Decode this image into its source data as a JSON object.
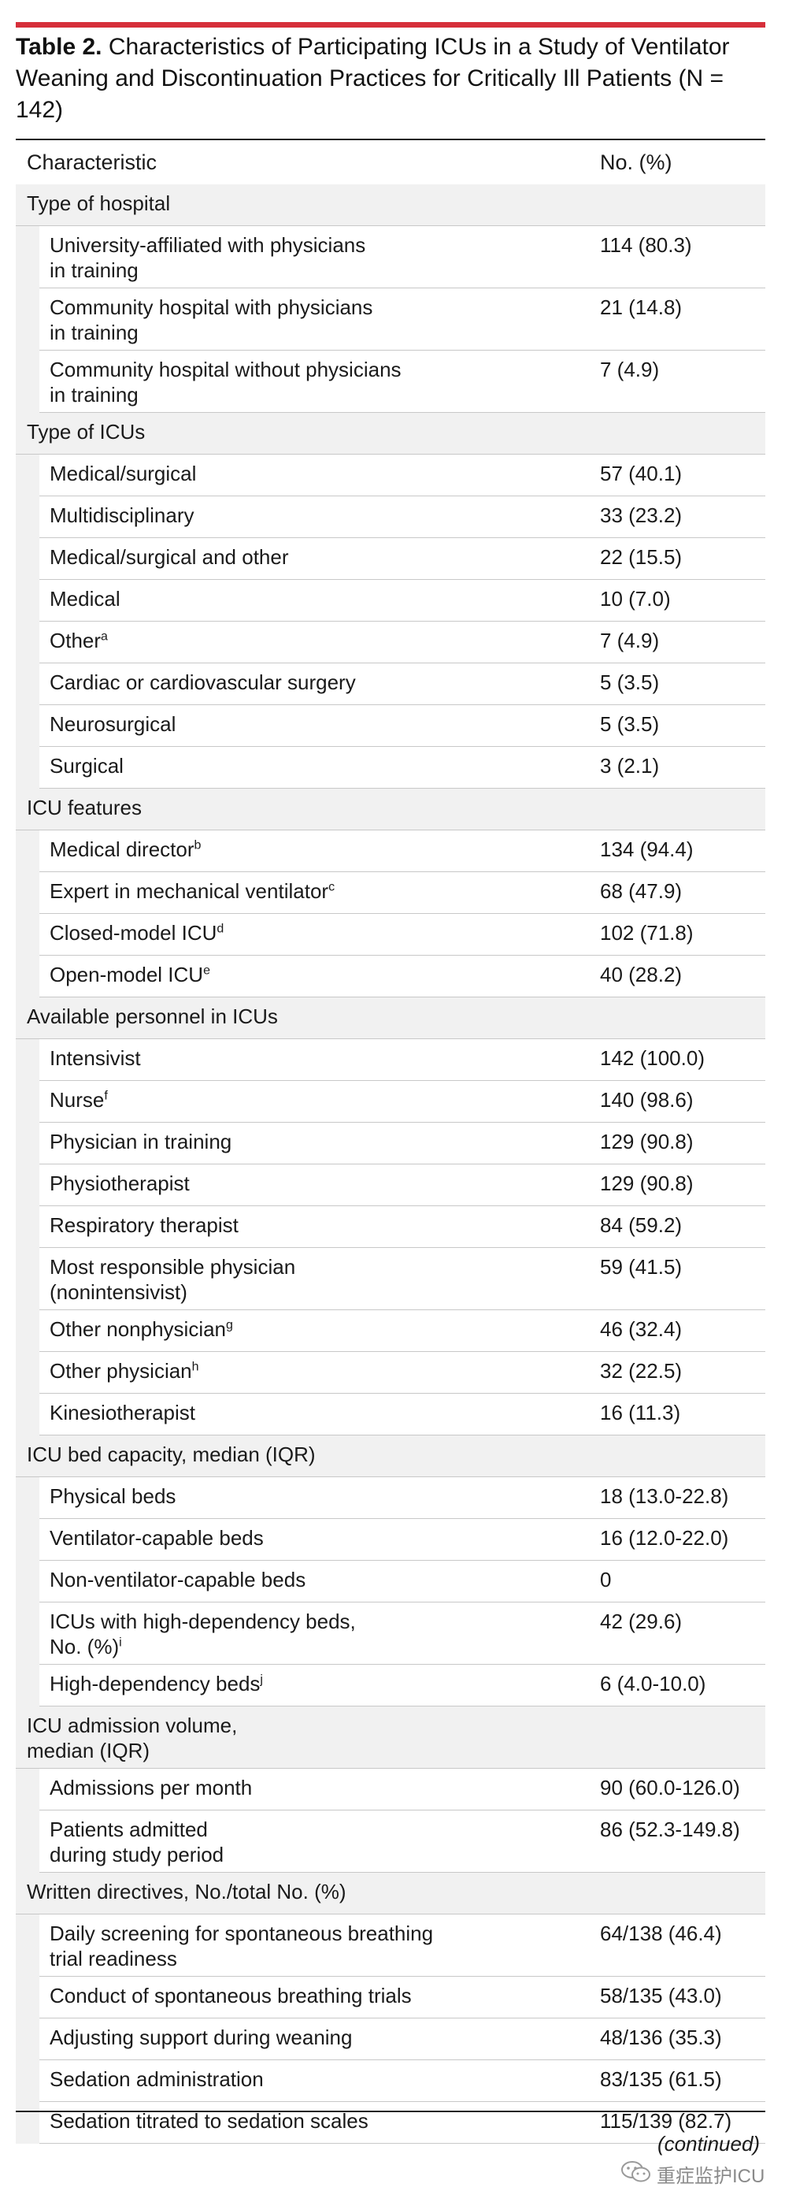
{
  "title": {
    "label": "Table 2.",
    "text": "Characteristics of Participating ICUs in a Study of Ventilator Weaning and Discontinuation Practices for Critically Ill Patients (N = 142)"
  },
  "header": {
    "col1": "Characteristic",
    "col2": "No. (%)"
  },
  "rows": [
    {
      "kind": "section",
      "label": "Type of hospital",
      "value": "",
      "sup": ""
    },
    {
      "kind": "sub",
      "label": "University-affiliated with physicians\nin training",
      "value": "114 (80.3)",
      "sup": ""
    },
    {
      "kind": "sub",
      "label": "Community hospital with physicians\nin training",
      "value": "21 (14.8)",
      "sup": ""
    },
    {
      "kind": "sub",
      "label": "Community hospital without physicians\nin training",
      "value": "7 (4.9)",
      "sup": ""
    },
    {
      "kind": "section",
      "label": "Type of ICUs",
      "value": "",
      "sup": ""
    },
    {
      "kind": "sub",
      "label": "Medical/surgical",
      "value": "57 (40.1)",
      "sup": ""
    },
    {
      "kind": "sub",
      "label": "Multidisciplinary",
      "value": "33 (23.2)",
      "sup": ""
    },
    {
      "kind": "sub",
      "label": "Medical/surgical and other",
      "value": "22 (15.5)",
      "sup": ""
    },
    {
      "kind": "sub",
      "label": "Medical",
      "value": "10 (7.0)",
      "sup": ""
    },
    {
      "kind": "sub",
      "label": "Other",
      "value": "7 (4.9)",
      "sup": "a"
    },
    {
      "kind": "sub",
      "label": "Cardiac or cardiovascular surgery",
      "value": "5 (3.5)",
      "sup": ""
    },
    {
      "kind": "sub",
      "label": "Neurosurgical",
      "value": "5 (3.5)",
      "sup": ""
    },
    {
      "kind": "sub",
      "label": "Surgical",
      "value": "3 (2.1)",
      "sup": ""
    },
    {
      "kind": "section",
      "label": "ICU features",
      "value": "",
      "sup": ""
    },
    {
      "kind": "sub",
      "label": "Medical director",
      "value": "134 (94.4)",
      "sup": "b"
    },
    {
      "kind": "sub",
      "label": "Expert in mechanical ventilator",
      "value": "68 (47.9)",
      "sup": "c"
    },
    {
      "kind": "sub",
      "label": "Closed-model ICU",
      "value": "102 (71.8)",
      "sup": "d"
    },
    {
      "kind": "sub",
      "label": "Open-model ICU",
      "value": "40 (28.2)",
      "sup": "e"
    },
    {
      "kind": "section",
      "label": "Available personnel in ICUs",
      "value": "",
      "sup": ""
    },
    {
      "kind": "sub",
      "label": "Intensivist",
      "value": "142 (100.0)",
      "sup": ""
    },
    {
      "kind": "sub",
      "label": "Nurse",
      "value": "140 (98.6)",
      "sup": "f"
    },
    {
      "kind": "sub",
      "label": "Physician in training",
      "value": "129 (90.8)",
      "sup": ""
    },
    {
      "kind": "sub",
      "label": "Physiotherapist",
      "value": "129 (90.8)",
      "sup": ""
    },
    {
      "kind": "sub",
      "label": "Respiratory therapist",
      "value": "84 (59.2)",
      "sup": ""
    },
    {
      "kind": "sub",
      "label": "Most responsible physician\n(nonintensivist)",
      "value": "59 (41.5)",
      "sup": ""
    },
    {
      "kind": "sub",
      "label": "Other nonphysician",
      "value": "46 (32.4)",
      "sup": "g"
    },
    {
      "kind": "sub",
      "label": "Other physician",
      "value": "32 (22.5)",
      "sup": "h"
    },
    {
      "kind": "sub",
      "label": "Kinesiotherapist",
      "value": "16 (11.3)",
      "sup": ""
    },
    {
      "kind": "section",
      "label": "ICU bed capacity, median (IQR)",
      "value": "",
      "sup": ""
    },
    {
      "kind": "sub",
      "label": "Physical beds",
      "value": "18 (13.0-22.8)",
      "sup": ""
    },
    {
      "kind": "sub",
      "label": "Ventilator-capable beds",
      "value": "16 (12.0-22.0)",
      "sup": ""
    },
    {
      "kind": "sub",
      "label": "Non-ventilator-capable beds",
      "value": "0",
      "sup": ""
    },
    {
      "kind": "sub",
      "label": "ICUs with high-dependency beds,\nNo. (%)",
      "value": "42 (29.6)",
      "sup": "i"
    },
    {
      "kind": "sub",
      "label": "High-dependency beds",
      "value": "6 (4.0-10.0)",
      "sup": "j"
    },
    {
      "kind": "section",
      "label": "ICU admission volume,\nmedian (IQR)",
      "value": "",
      "sup": ""
    },
    {
      "kind": "sub",
      "label": "Admissions per month",
      "value": "90 (60.0-126.0)",
      "sup": ""
    },
    {
      "kind": "sub",
      "label": "Patients admitted\nduring study period",
      "value": "86 (52.3-149.8)",
      "sup": ""
    },
    {
      "kind": "section",
      "label": "Written directives, No./total No. (%)",
      "value": "",
      "sup": ""
    },
    {
      "kind": "sub",
      "label": "Daily screening for spontaneous breathing\ntrial readiness",
      "value": "64/138 (46.4)",
      "sup": ""
    },
    {
      "kind": "sub",
      "label": "Conduct of spontaneous breathing trials",
      "value": "58/135 (43.0)",
      "sup": ""
    },
    {
      "kind": "sub",
      "label": "Adjusting support during weaning",
      "value": "48/136 (35.3)",
      "sup": ""
    },
    {
      "kind": "sub",
      "label": "Sedation administration",
      "value": "83/135 (61.5)",
      "sup": ""
    },
    {
      "kind": "sub",
      "label": "Sedation titrated to sedation scales",
      "value": "115/139 (82.7)",
      "sup": ""
    }
  ],
  "footer": {
    "continued": "(continued)"
  },
  "watermark": {
    "text": "重症监护ICU",
    "icon": "wechat-icon"
  }
}
